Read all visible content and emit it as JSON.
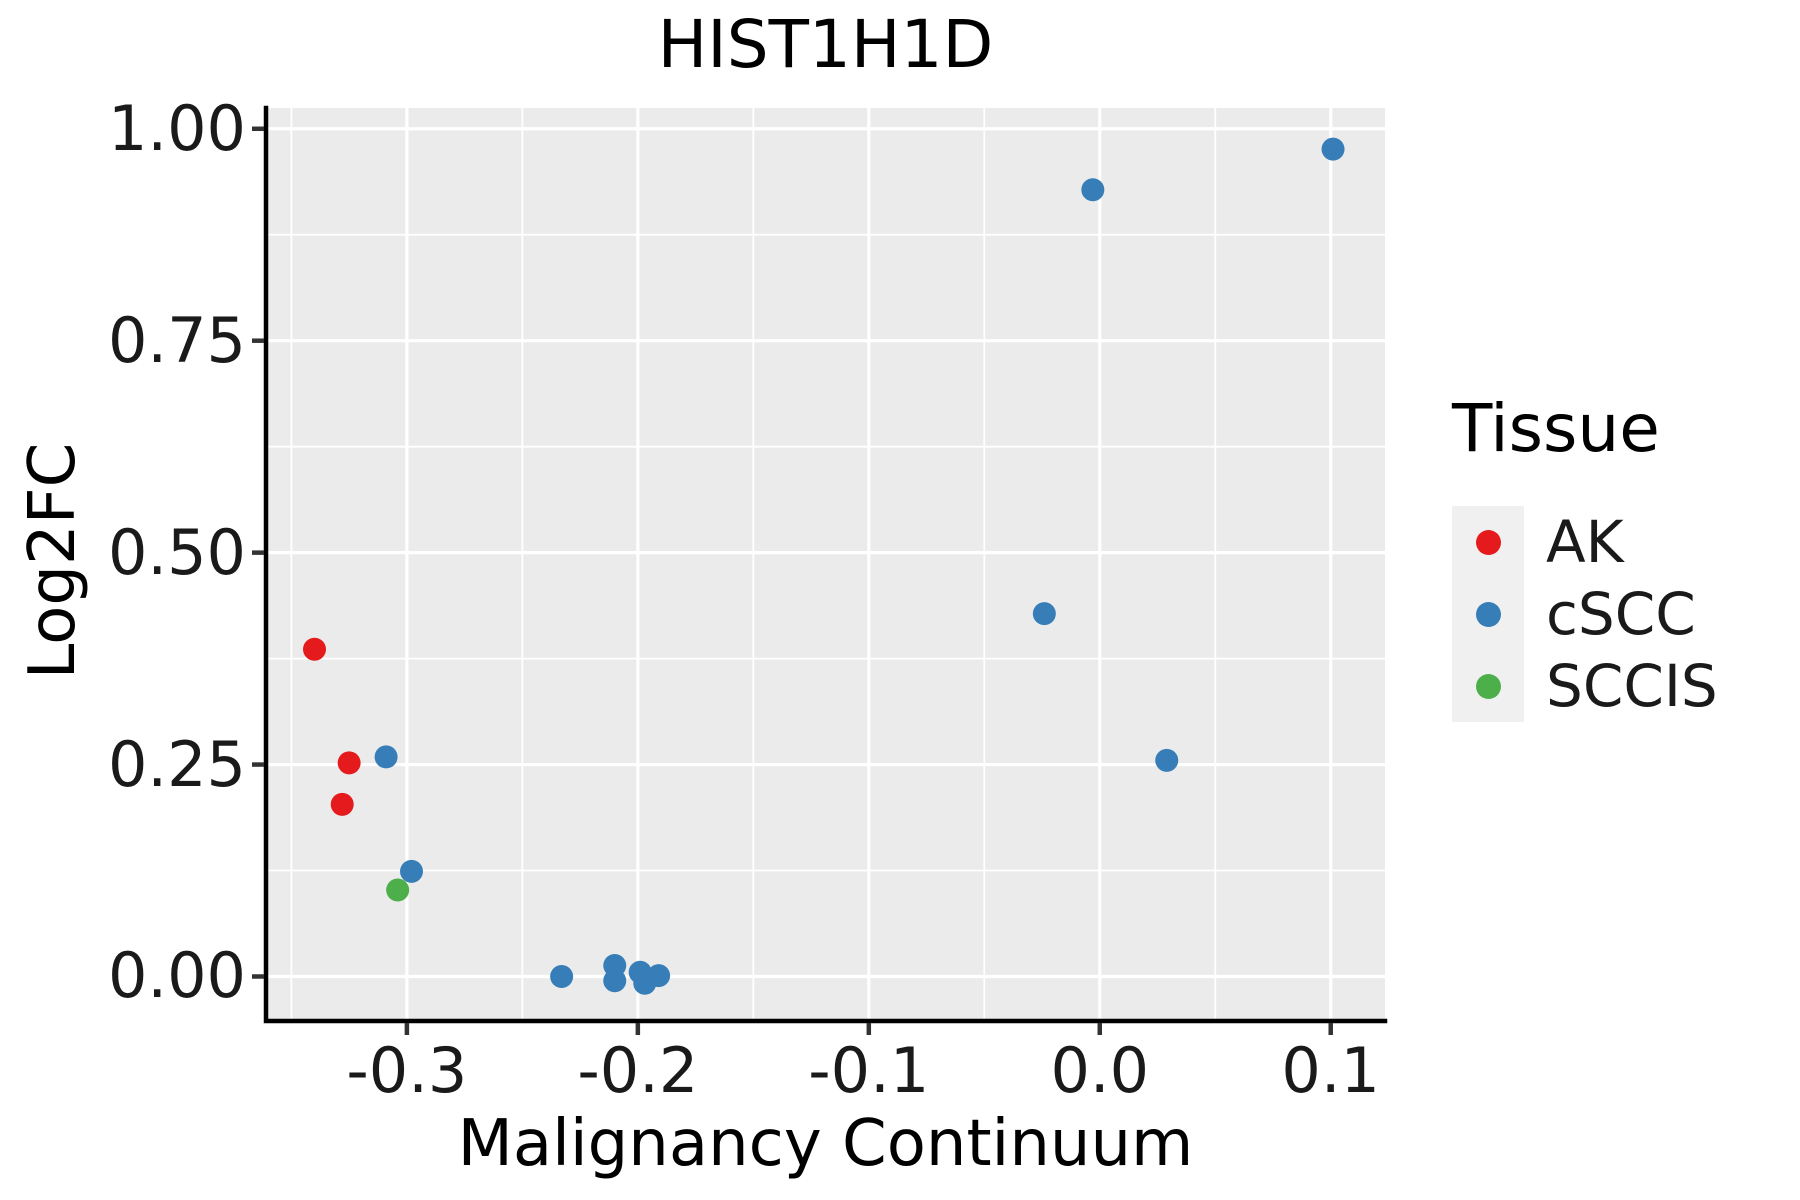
{
  "chart_data": {
    "type": "scatter",
    "title": "HIST1H1D",
    "xlabel": "Malignancy Continuum",
    "ylabel": "Log2FC",
    "xlim": [
      -0.361,
      0.1235
    ],
    "ylim": [
      -0.0525,
      1.0245
    ],
    "x_ticks": [
      -0.3,
      -0.2,
      -0.1,
      0.0,
      0.1
    ],
    "x_tick_labels": [
      "-0.3",
      "-0.2",
      "-0.1",
      "0.0",
      "0.1"
    ],
    "y_ticks": [
      0.0,
      0.25,
      0.5,
      0.75,
      1.0
    ],
    "y_tick_labels": [
      "0.00",
      "0.25",
      "0.50",
      "0.75",
      "1.00"
    ],
    "x_minor_ticks": [
      -0.35,
      -0.25,
      -0.15,
      -0.05,
      0.05
    ],
    "y_minor_ticks": [
      0.125,
      0.375,
      0.625,
      0.875
    ],
    "grid": true,
    "legend_position": "right",
    "legend_title": "Tissue",
    "series": [
      {
        "name": "AK",
        "color": "#E41A1C",
        "points": [
          [
            -0.34,
            0.386
          ],
          [
            -0.325,
            0.252
          ],
          [
            -0.328,
            0.203
          ]
        ]
      },
      {
        "name": "cSCC",
        "color": "#377EB8",
        "points": [
          [
            -0.309,
            0.259
          ],
          [
            -0.298,
            0.124
          ],
          [
            -0.233,
            0.0
          ],
          [
            -0.21,
            0.013
          ],
          [
            -0.21,
            -0.005
          ],
          [
            -0.199,
            0.005
          ],
          [
            -0.197,
            -0.008
          ],
          [
            -0.191,
            0.001
          ],
          [
            -0.024,
            0.428
          ],
          [
            -0.003,
            0.928
          ],
          [
            0.029,
            0.255
          ],
          [
            0.101,
            0.976
          ]
        ]
      },
      {
        "name": "SCCIS",
        "color": "#4DAF4A",
        "points": [
          [
            -0.304,
            0.102
          ]
        ]
      }
    ]
  },
  "legend": {
    "title": "Tissue",
    "items": [
      {
        "label": "AK",
        "color": "#E41A1C"
      },
      {
        "label": "cSCC",
        "color": "#377EB8"
      },
      {
        "label": "SCCIS",
        "color": "#4DAF4A"
      }
    ]
  },
  "colors": {
    "panel_bg": "#EBEBEB",
    "grid": "#FFFFFF",
    "axis_line": "#000000",
    "tick_mark": "#333333",
    "text": "#000000"
  }
}
